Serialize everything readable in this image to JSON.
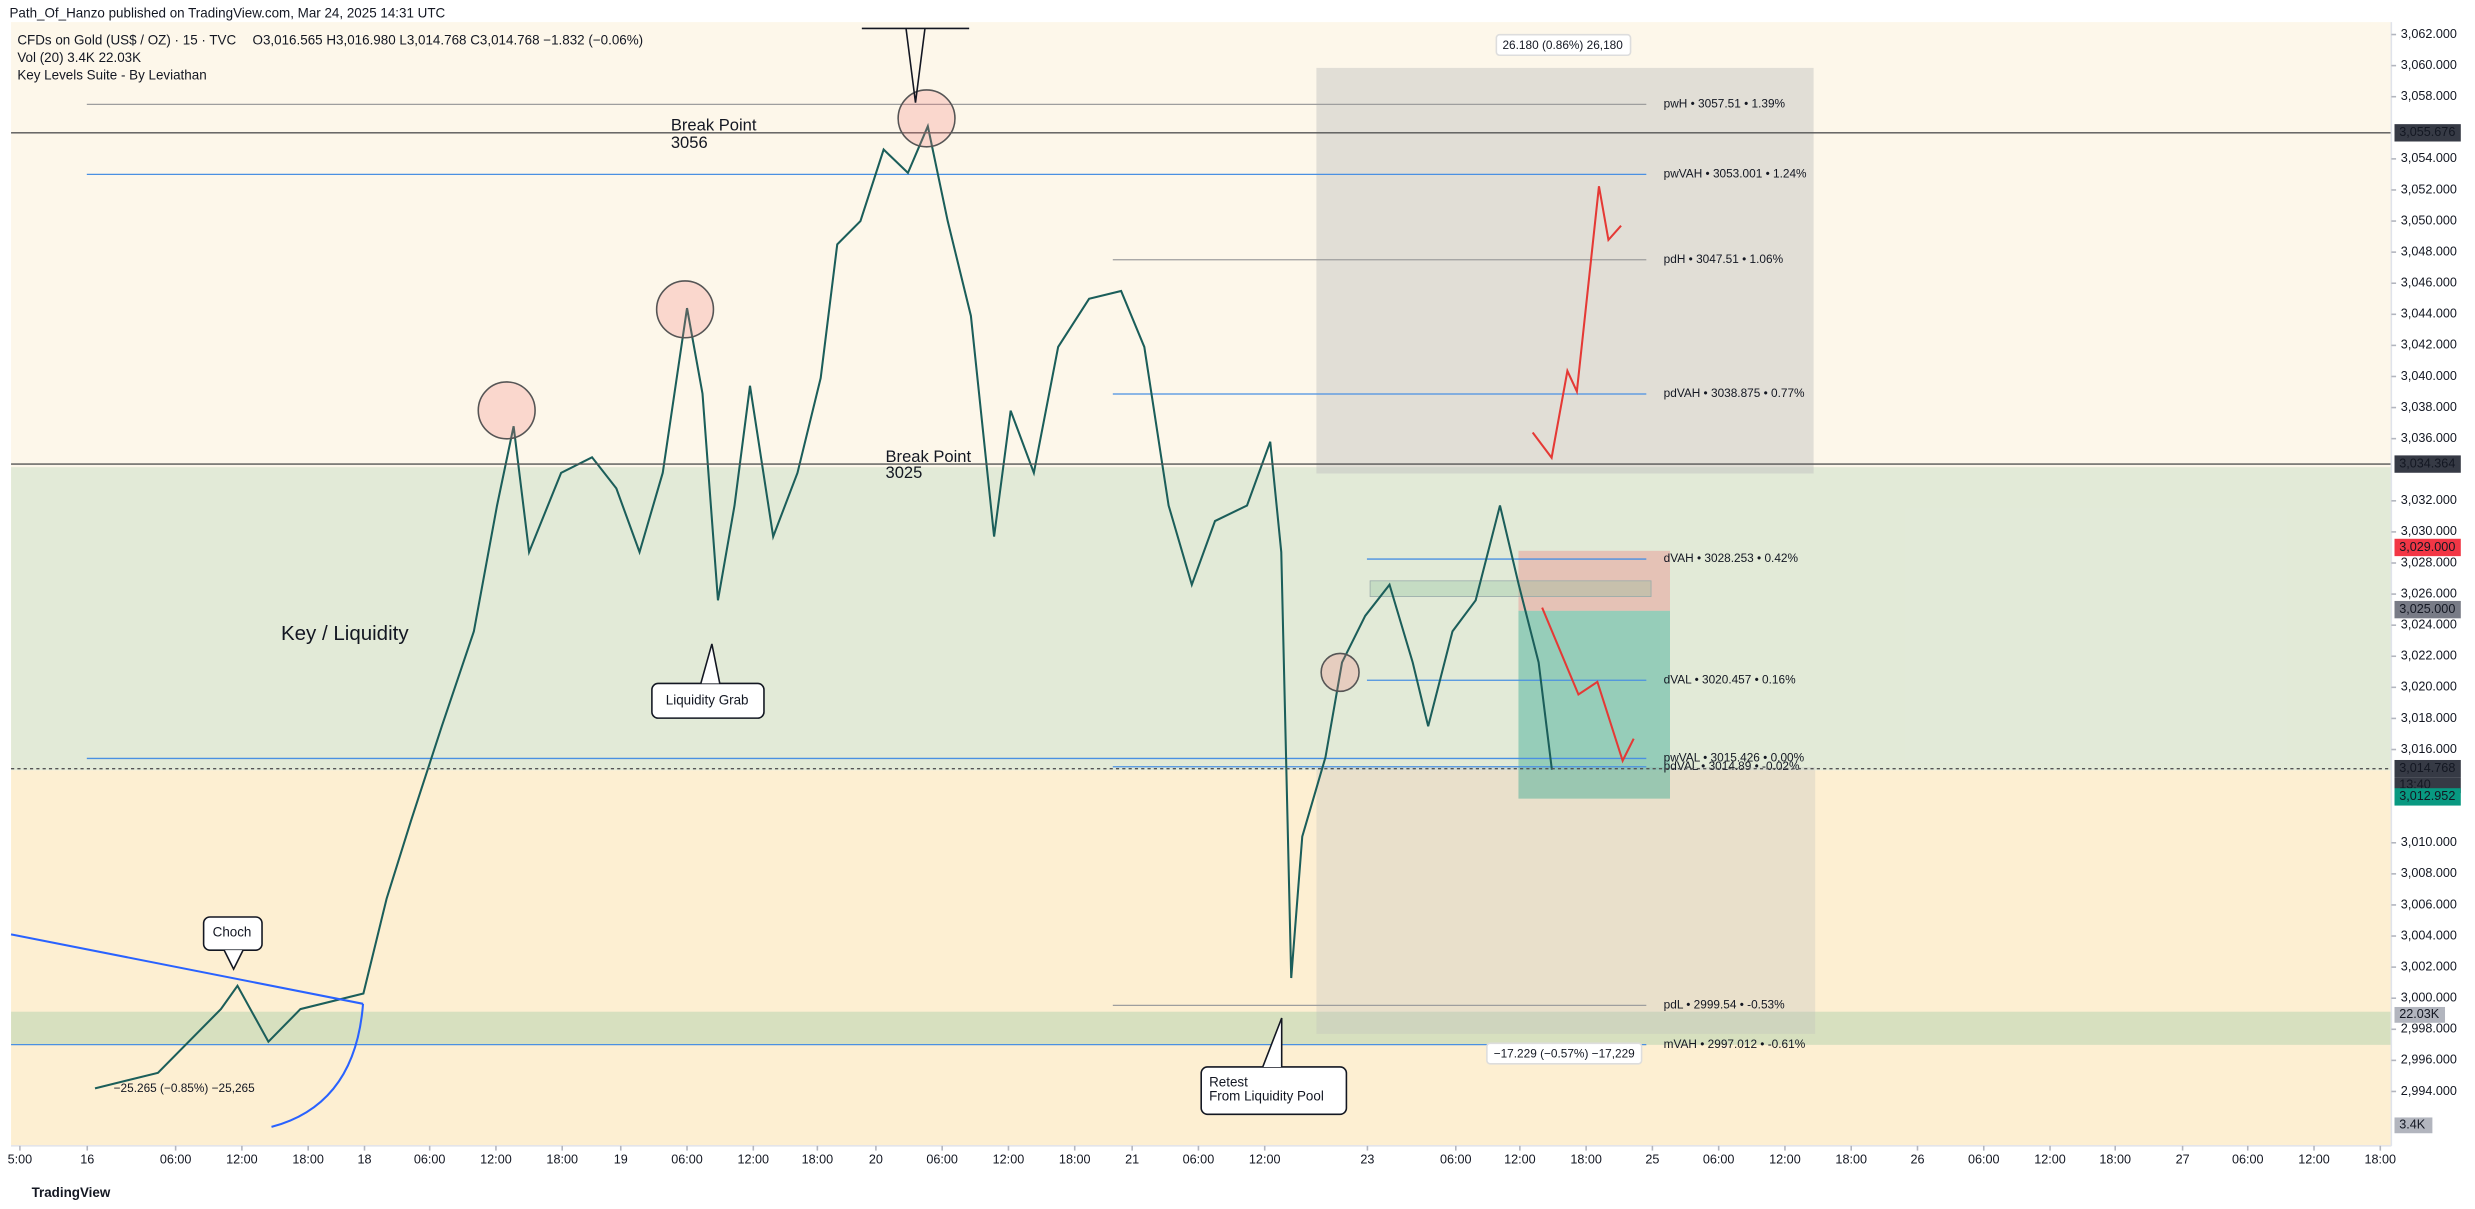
{
  "header": {
    "publisher": "Path_Of_Hanzo published on TradingView.com, Mar 24, 2025 14:31 UTC",
    "symbol": "CFDs on Gold (US$ / OZ) · 15 · TVC",
    "ohlc": "O3,016.565 H3,016.980 L3,014.768 C3,014.768 −1.832 (−0.06%)",
    "volume": "Vol (20) 3.4K 22.03K",
    "indicator": "Key Levels Suite - By Leviathan"
  },
  "footer": "TradingView",
  "chart_data": {
    "type": "line",
    "color": "#1b5e5a",
    "x": [
      0.7,
      6.4,
      12.1,
      13.6,
      16.4,
      19.3,
      25,
      27.1,
      29.3,
      32.1,
      35,
      37.1,
      38.6,
      40,
      42.9,
      45.7,
      47.9,
      50,
      52.1,
      54.3,
      55.7,
      57.1,
      58.6,
      60,
      62.1,
      64.3,
      66.4,
      67.9,
      70,
      72.1,
      74.3,
      76.1,
      77.9,
      80,
      82.1,
      83.6,
      85.7,
      87.9,
      90.7,
      93.6,
      95.7,
      97.9,
      100,
      102.1,
      105,
      107.1,
      108.1,
      109,
      110,
      112.1,
      113.6,
      115.7,
      117.9,
      120,
      121.4,
      123.6,
      125.7,
      127.9,
      129.6,
      131.4,
      132.6
    ],
    "values": [
      2994.2,
      2995.2,
      2999.3,
      3000.8,
      2997.2,
      2999.3,
      3000.3,
      3006.4,
      3011.4,
      3017.5,
      3023.6,
      3031.7,
      3036.8,
      3028.7,
      3033.8,
      3034.8,
      3032.8,
      3028.7,
      3033.8,
      3044.4,
      3038.9,
      3025.6,
      3031.7,
      3039.4,
      3029.7,
      3033.8,
      3039.9,
      3048.5,
      3050.0,
      3054.6,
      3053.1,
      3056.1,
      3050.0,
      3043.9,
      3029.7,
      3037.8,
      3033.8,
      3041.9,
      3045.0,
      3045.5,
      3041.9,
      3031.7,
      3026.6,
      3030.7,
      3031.7,
      3035.8,
      3028.7,
      3001.3,
      3010.4,
      3015.5,
      3021.6,
      3024.6,
      3026.6,
      3021.6,
      3017.5,
      3023.6,
      3025.6,
      3031.7,
      3026.6,
      3021.6,
      3014.7
    ],
    "xlim": [
      -6.9,
      208.6
    ],
    "xticks": [
      {
        "value": -6.1,
        "label": "5:00"
      },
      {
        "value": 0,
        "label": "16"
      },
      {
        "value": 8,
        "label": "06:00"
      },
      {
        "value": 14,
        "label": "12:00"
      },
      {
        "value": 20,
        "label": "18:00"
      },
      {
        "value": 25.1,
        "label": "18"
      },
      {
        "value": 31,
        "label": "06:00"
      },
      {
        "value": 37,
        "label": "12:00"
      },
      {
        "value": 43,
        "label": "18:00"
      },
      {
        "value": 48.3,
        "label": "19"
      },
      {
        "value": 54.3,
        "label": "06:00"
      },
      {
        "value": 60.3,
        "label": "12:00"
      },
      {
        "value": 66.1,
        "label": "18:00"
      },
      {
        "value": 71.4,
        "label": "20"
      },
      {
        "value": 77.4,
        "label": "06:00"
      },
      {
        "value": 83.4,
        "label": "12:00"
      },
      {
        "value": 89.4,
        "label": "18:00"
      },
      {
        "value": 94.6,
        "label": "21"
      },
      {
        "value": 100.6,
        "label": "06:00"
      },
      {
        "value": 106.6,
        "label": "12:00"
      },
      {
        "value": 115.9,
        "label": "23"
      },
      {
        "value": 123.9,
        "label": "06:00"
      },
      {
        "value": 129.7,
        "label": "12:00"
      },
      {
        "value": 135.7,
        "label": "18:00"
      },
      {
        "value": 141.7,
        "label": "25"
      },
      {
        "value": 147.7,
        "label": "06:00"
      },
      {
        "value": 153.7,
        "label": "12:00"
      },
      {
        "value": 159.7,
        "label": "18:00"
      },
      {
        "value": 165.7,
        "label": "26"
      },
      {
        "value": 171.7,
        "label": "06:00"
      },
      {
        "value": 177.7,
        "label": "12:00"
      },
      {
        "value": 183.6,
        "label": "18:00"
      },
      {
        "value": 189.7,
        "label": "27"
      },
      {
        "value": 195.6,
        "label": "06:00"
      },
      {
        "value": 201.6,
        "label": "12:00"
      },
      {
        "value": 207.6,
        "label": "18:00"
      }
    ],
    "ylim": [
      2990.5,
      3062.8
    ],
    "yticks": [
      {
        "value": 3062,
        "label": "3,062.000"
      },
      {
        "value": 3060,
        "label": "3,060.000"
      },
      {
        "value": 3058,
        "label": "3,058.000"
      },
      {
        "value": 3054,
        "label": "3,054.000"
      },
      {
        "value": 3052,
        "label": "3,052.000"
      },
      {
        "value": 3050,
        "label": "3,050.000"
      },
      {
        "value": 3048,
        "label": "3,048.000"
      },
      {
        "value": 3046,
        "label": "3,046.000"
      },
      {
        "value": 3044,
        "label": "3,044.000"
      },
      {
        "value": 3042,
        "label": "3,042.000"
      },
      {
        "value": 3040,
        "label": "3,040.000"
      },
      {
        "value": 3038,
        "label": "3,038.000"
      },
      {
        "value": 3036,
        "label": "3,036.000"
      },
      {
        "value": 3032,
        "label": "3,032.000"
      },
      {
        "value": 3030,
        "label": "3,030.000"
      },
      {
        "value": 3028,
        "label": "3,028.000"
      },
      {
        "value": 3026,
        "label": "3,026.000"
      },
      {
        "value": 3024,
        "label": "3,024.000"
      },
      {
        "value": 3022,
        "label": "3,022.000"
      },
      {
        "value": 3020,
        "label": "3,020.000"
      },
      {
        "value": 3018,
        "label": "3,018.000"
      },
      {
        "value": 3016,
        "label": "3,016.000"
      },
      {
        "value": 3010,
        "label": "3,010.000"
      },
      {
        "value": 3008,
        "label": "3,008.000"
      },
      {
        "value": 3006,
        "label": "3,006.000"
      },
      {
        "value": 3004,
        "label": "3,004.000"
      },
      {
        "value": 3002,
        "label": "3,002.000"
      },
      {
        "value": 3000,
        "label": "3,000.000"
      },
      {
        "value": 2998,
        "label": "2,998.000"
      },
      {
        "value": 2996,
        "label": "2,996.000"
      },
      {
        "value": 2994,
        "label": "2,994.000"
      }
    ],
    "levels": [
      {
        "value": 3057.51,
        "label": "pwH • 3057.51 • 1.39%",
        "color": "#9e9e9e"
      },
      {
        "value": 3053.001,
        "label": "pwVAH • 3053.001 • 1.24%",
        "color": "#4a90e2"
      },
      {
        "value": 3047.51,
        "label": "pdH • 3047.51 • 1.06%",
        "color": "#9e9e9e"
      },
      {
        "value": 3038.875,
        "label": "pdVAH • 3038.875 • 0.77%",
        "color": "#4a90e2"
      },
      {
        "value": 3028.253,
        "label": "dVAH • 3028.253 • 0.42%",
        "color": "#4a90e2"
      },
      {
        "value": 3020.457,
        "label": "dVAL • 3020.457 • 0.16%",
        "color": "#4a90e2"
      },
      {
        "value": 3015.426,
        "label": "pwVAL • 3015.426 • 0.00%",
        "color": "#4a90e2"
      },
      {
        "value": 3014.89,
        "label": "pdVAL • 3014.89 • -0.02%",
        "color": "#4a90e2"
      },
      {
        "value": 2999.54,
        "label": "pdL • 2999.54 • -0.53%",
        "color": "#9e9e9e"
      },
      {
        "value": 2997.012,
        "label": "mVAH • 2997.012 • -0.61%",
        "color": "#4a90e2"
      }
    ],
    "price_badges": [
      {
        "value": 3055.676,
        "label": "3,055.676",
        "color": "#363a45"
      },
      {
        "value": 3034.364,
        "label": "3,034.364",
        "color": "#363a45"
      },
      {
        "value": 3029,
        "label": "3,029.000",
        "color": "#f23645"
      },
      {
        "value": 3025,
        "label": "3,025.000",
        "color": "#787b86"
      },
      {
        "value": 3014.768,
        "label": "3,014.768",
        "color": "#363a45"
      },
      {
        "value": 3012.952,
        "label": "3,012.952",
        "color": "#089981"
      }
    ],
    "countdown": "13:40",
    "volume_labels": [
      "22.03K",
      "3.4K"
    ],
    "annotations": {
      "break_high": [
        "Break Point",
        "3056"
      ],
      "break_mid": [
        "Break Point",
        "3025"
      ],
      "zone": "Key / Liquidity",
      "grab": "Liquidity Grab",
      "choch": "Choch",
      "retest": [
        "Retest",
        "From Liquidity Pool"
      ],
      "measure_up": "26.180 (0.86%) 26,180",
      "measure_down": "−17.229 (−0.57%) −17,229",
      "measure_left": "−25.265 (−0.85%) −25,265"
    }
  }
}
